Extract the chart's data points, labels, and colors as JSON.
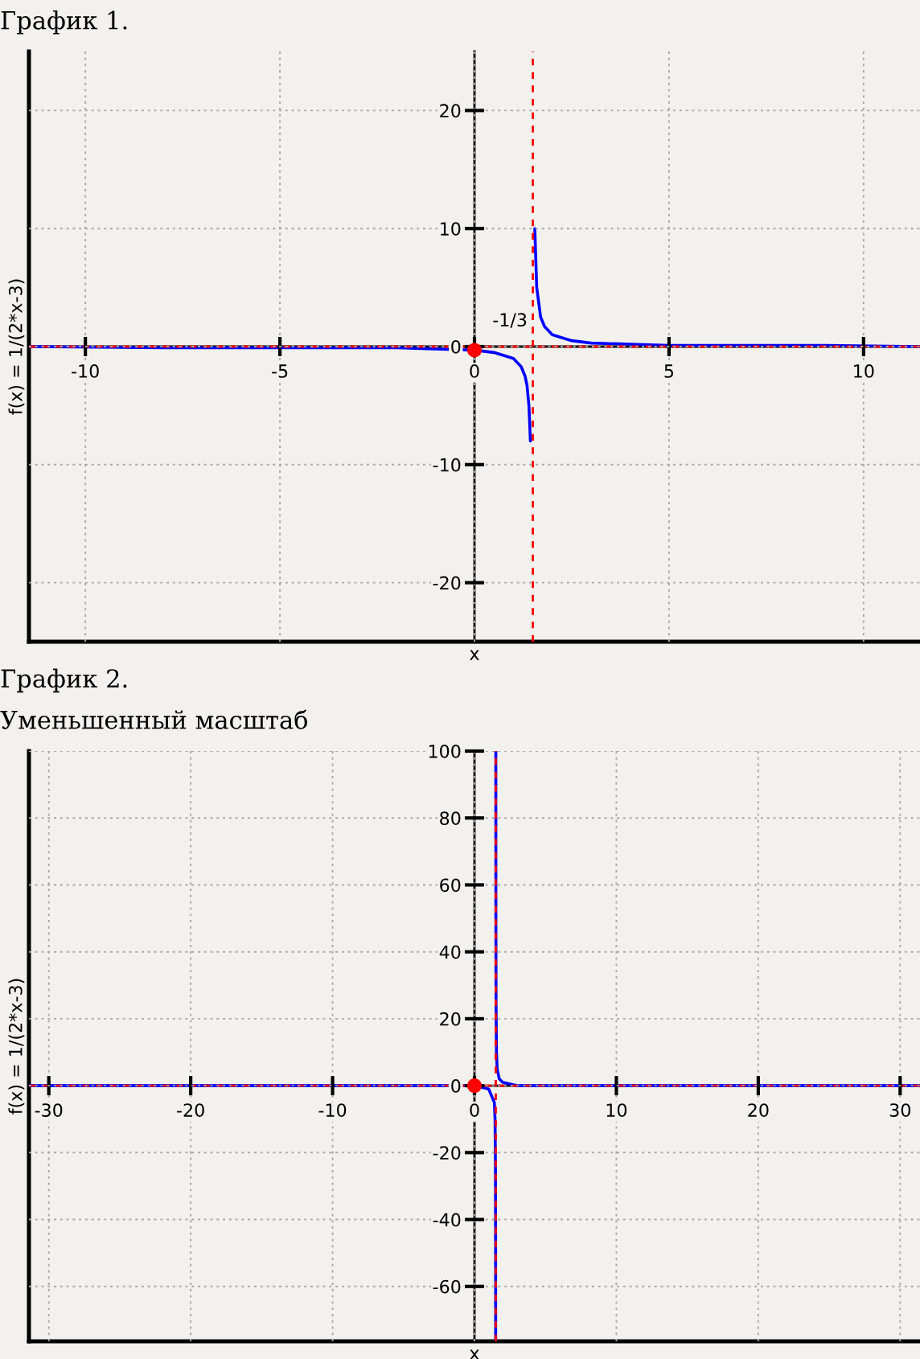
{
  "chart_data": [
    {
      "type": "line",
      "title": "График 1.",
      "xlabel": "x",
      "ylabel": "f(x) = 1/(2*x-3)",
      "xlim": [
        -11.45,
        11.45
      ],
      "ylim": [
        -25,
        25
      ],
      "xticks": [
        -10,
        -5,
        0,
        5,
        10
      ],
      "yticks": [
        -20,
        -10,
        0,
        10,
        20
      ],
      "grid": true,
      "series": [
        {
          "color": "#0000ff",
          "x": [
            -11.45,
            -8,
            -6,
            -4,
            -2,
            -1,
            0,
            0.5,
            1,
            1.2,
            1.3,
            1.35,
            1.4,
            1.4375,
            1.5,
            1.55,
            1.6,
            1.7,
            1.8,
            2,
            2.5,
            3,
            4,
            5,
            7,
            9,
            11.45
          ],
          "values": [
            0,
            -0.1,
            -0.1,
            -0.1,
            -0.1,
            -0.2,
            -0.3,
            -0.5,
            -1,
            -1.7,
            -2.5,
            -3.3,
            -5,
            -8,
            null,
            10,
            5,
            2.5,
            1.7,
            1,
            0.5,
            0.3,
            0.2,
            0.1,
            0.1,
            0.1,
            0
          ]
        },
        {
          "type": "scatter",
          "color": "#ff0000",
          "marker": "circle",
          "x": [
            0
          ],
          "values": [
            -0.3
          ]
        }
      ],
      "ref_lines": [
        {
          "axis": "x",
          "value": 1.5,
          "color": "#ff0000",
          "line_style": "dashed"
        },
        {
          "axis": "y",
          "value": 0,
          "color": "#ff0000",
          "line_style": "dashed"
        }
      ],
      "annotations": [
        {
          "text": "-1/3",
          "x": 0,
          "y": -0.3
        }
      ]
    },
    {
      "type": "line",
      "title": "График 2.",
      "subtitle": "Уменьшенный масштаб",
      "xlabel": "x",
      "ylabel": "f(x) = 1/(2*x-3)",
      "xlim": [
        -31.4,
        31.4
      ],
      "ylim": [
        -76.4,
        100
      ],
      "xticks": [
        -30,
        -20,
        -10,
        0,
        10,
        20,
        30
      ],
      "yticks": [
        -60,
        -40,
        -20,
        0,
        20,
        40,
        60,
        80,
        100
      ],
      "grid": true,
      "series": [
        {
          "color": "#0000ff",
          "x": [
            -31.4,
            -10,
            0,
            1,
            1.4,
            1.45,
            1.48,
            1.49,
            1.4934,
            1.5,
            1.505,
            1.51,
            1.52,
            1.55,
            1.6,
            1.75,
            2,
            3,
            10,
            31.4
          ],
          "values": [
            0,
            0,
            0,
            -1,
            -5,
            -10,
            -25,
            -50,
            -76,
            null,
            100,
            50,
            25,
            10,
            5,
            2,
            1,
            0,
            0,
            0
          ]
        },
        {
          "type": "scatter",
          "color": "#ff0000",
          "marker": "circle",
          "x": [
            0
          ],
          "values": [
            0
          ]
        }
      ],
      "ref_lines": [
        {
          "axis": "x",
          "value": 1.5,
          "color": "#ff0000",
          "line_style": "dashed"
        },
        {
          "axis": "y",
          "value": 0,
          "color": "#ff0000",
          "line_style": "dashed"
        }
      ]
    }
  ]
}
